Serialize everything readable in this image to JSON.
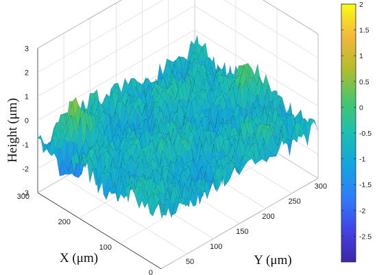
{
  "chart_data": {
    "type": "surface3d",
    "title": "",
    "xlabel": "X (μm)",
    "ylabel": "Y (μm)",
    "zlabel": "Height (μm)",
    "xlim": [
      0,
      300
    ],
    "ylim": [
      0,
      300
    ],
    "zlim": [
      -3,
      3
    ],
    "x_ticks": [
      "0",
      "100",
      "200",
      "300"
    ],
    "y_ticks": [
      "50",
      "100",
      "150",
      "200",
      "250",
      "300"
    ],
    "z_ticks": [
      "-3",
      "-2",
      "-1",
      "0",
      "1",
      "2",
      "3"
    ],
    "grid": true,
    "colormap": "parula",
    "colorbar": {
      "min": -3,
      "max": 2,
      "ticks": [
        "2",
        "1.5",
        "1",
        "0.5",
        "0",
        "-0.5",
        "-1",
        "-1.5",
        "-2",
        "-2.5"
      ],
      "tick_values": [
        2,
        1.5,
        1,
        0.5,
        0,
        -0.5,
        -1,
        -1.5,
        -2,
        -2.5
      ]
    },
    "surface": {
      "mean_height": -0.8,
      "approx_range": [
        -2.9,
        1.2
      ],
      "features": [
        {
          "x": 260,
          "y": 40,
          "z": 0.9
        },
        {
          "x": 150,
          "y": 280,
          "z": 0.2
        },
        {
          "x": 240,
          "y": 20,
          "z": -2.4
        }
      ]
    },
    "colors": {
      "low": "#3e26a8",
      "mid": "#1fc1a4",
      "high": "#f9fb15"
    }
  }
}
